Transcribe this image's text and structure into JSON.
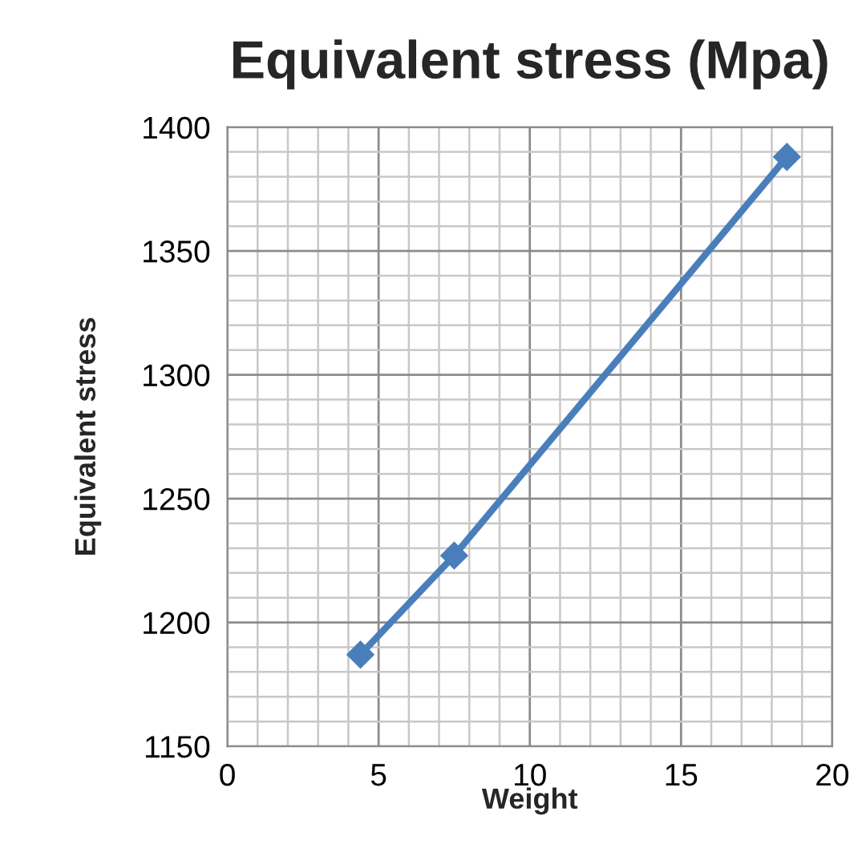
{
  "chart_data": {
    "type": "line",
    "title": "Equivalent stress (Mpa)",
    "xlabel": "Weight",
    "ylabel": "Equivalent stress",
    "x": [
      4.4,
      7.5,
      18.5
    ],
    "series": [
      {
        "color": "#4a7ebb",
        "values": [
          1187,
          1227,
          1388
        ]
      }
    ],
    "xlim": [
      0,
      20
    ],
    "xticks": [
      0,
      5,
      10,
      15,
      20
    ],
    "ylim": [
      1150,
      1400
    ],
    "yticks": [
      1150,
      1200,
      1250,
      1300,
      1350,
      1400
    ],
    "grid": true,
    "marker": "diamond",
    "line_style": "solid",
    "legend": false
  }
}
